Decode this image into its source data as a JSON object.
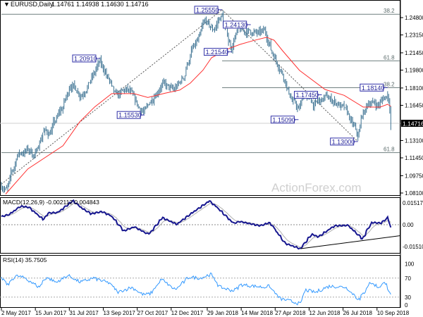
{
  "header": {
    "menu_glyph": "▼",
    "symbol": "EURUSD,Daily",
    "ohlc": "1.14761 1.14938 1.14630 1.14716"
  },
  "watermark": "ActionForex.com",
  "colors": {
    "bars": "#3e7393",
    "sma": "#ff3030",
    "macd": "#16168f",
    "macd_signal": "#b0b0b0",
    "rsi": "#3399ff",
    "label_border": "#3030a8",
    "label_text": "#25259a",
    "fib_line": "#6f7f7f",
    "price_tag_bg": "#000000"
  },
  "chart_data": [
    {
      "type": "candlestick-ohlc",
      "title": "EURUSD,Daily",
      "x_ticks": [
        "2 May 2017",
        "15 Jun 2017",
        "31 Jul 2017",
        "13 Sep 2017",
        "27 Oct 2017",
        "12 Dec 2017",
        "29 Jan 2018",
        "14 Mar 2018",
        "27 Apr 2018",
        "12 Jun 2018",
        "26 Jul 2018",
        "10 Sep 2018"
      ],
      "x_tick_dates": [
        "2017-05-02",
        "2017-06-15",
        "2017-07-31",
        "2017-09-13",
        "2017-10-27",
        "2017-12-12",
        "2018-01-29",
        "2018-03-14",
        "2018-04-27",
        "2018-06-12",
        "2018-07-26",
        "2018-09-10"
      ],
      "x_range": [
        "2017-05-02",
        "2018-09-27"
      ],
      "y_ticks": [
        "1.24800",
        "1.23150",
        "1.21450",
        "1.19800",
        "1.18100",
        "1.16450",
        "1.13100",
        "1.11450",
        "1.09750",
        "1.08100"
      ],
      "ylim": [
        1.081,
        1.248
      ],
      "current_price": "1.14716",
      "close_path": [
        [
          "2017-05-03",
          1.088
        ],
        [
          "2017-05-09",
          1.084
        ],
        [
          "2017-05-23",
          1.118
        ],
        [
          "2017-06-06",
          1.122
        ],
        [
          "2017-06-16",
          1.117
        ],
        [
          "2017-06-25",
          1.14
        ],
        [
          "2017-07-04",
          1.138
        ],
        [
          "2017-07-23",
          1.165
        ],
        [
          "2017-08-01",
          1.185
        ],
        [
          "2017-08-15",
          1.175
        ],
        [
          "2017-08-29",
          1.19
        ],
        [
          "2017-09-08",
          1.205
        ],
        [
          "2017-09-17",
          1.195
        ],
        [
          "2017-09-29",
          1.172
        ],
        [
          "2017-10-15",
          1.18
        ],
        [
          "2017-10-29",
          1.163
        ],
        [
          "2017-11-07",
          1.158
        ],
        [
          "2017-11-17",
          1.172
        ],
        [
          "2017-11-29",
          1.185
        ],
        [
          "2017-12-15",
          1.178
        ],
        [
          "2017-12-27",
          1.19
        ],
        [
          "2018-01-07",
          1.215
        ],
        [
          "2018-01-16",
          1.225
        ],
        [
          "2018-01-26",
          1.245
        ],
        [
          "2018-02-04",
          1.235
        ],
        [
          "2018-02-16",
          1.25
        ],
        [
          "2018-02-23",
          1.232
        ],
        [
          "2018-03-01",
          1.22
        ],
        [
          "2018-03-09",
          1.235
        ],
        [
          "2018-03-27",
          1.235
        ],
        [
          "2018-04-06",
          1.232
        ],
        [
          "2018-04-15",
          1.235
        ],
        [
          "2018-04-24",
          1.215
        ],
        [
          "2018-05-08",
          1.195
        ],
        [
          "2018-05-18",
          1.172
        ],
        [
          "2018-05-29",
          1.16
        ],
        [
          "2018-06-05",
          1.175
        ],
        [
          "2018-06-19",
          1.165
        ],
        [
          "2018-07-03",
          1.172
        ],
        [
          "2018-07-17",
          1.168
        ],
        [
          "2018-07-31",
          1.158
        ],
        [
          "2018-08-15",
          1.135
        ],
        [
          "2018-08-21",
          1.155
        ],
        [
          "2018-08-30",
          1.168
        ],
        [
          "2018-09-11",
          1.165
        ],
        [
          "2018-09-24",
          1.176
        ],
        [
          "2018-09-26",
          1.164
        ],
        [
          "2018-09-27",
          1.147
        ]
      ],
      "sma": [
        [
          "2017-05-08",
          1.08
        ],
        [
          "2017-06-06",
          1.104
        ],
        [
          "2017-07-23",
          1.126
        ],
        [
          "2017-08-14",
          1.149
        ],
        [
          "2017-09-01",
          1.163
        ],
        [
          "2017-09-25",
          1.1756
        ],
        [
          "2017-10-24",
          1.1756
        ],
        [
          "2017-11-12",
          1.172
        ],
        [
          "2017-12-04",
          1.176
        ],
        [
          "2017-12-22",
          1.179
        ],
        [
          "2018-01-07",
          1.1856
        ],
        [
          "2018-01-23",
          1.198
        ],
        [
          "2018-02-04",
          1.2098
        ],
        [
          "2018-02-23",
          1.218
        ],
        [
          "2018-03-13",
          1.2225
        ],
        [
          "2018-03-29",
          1.226
        ],
        [
          "2018-04-17",
          1.2293
        ],
        [
          "2018-04-26",
          1.2265
        ],
        [
          "2018-05-08",
          1.2165
        ],
        [
          "2018-05-30",
          1.1977
        ],
        [
          "2018-07-03",
          1.1796
        ],
        [
          "2018-07-28",
          1.174
        ],
        [
          "2018-08-22",
          1.1628
        ],
        [
          "2018-09-13",
          1.1628
        ],
        [
          "2018-09-24",
          1.1655
        ],
        [
          "2018-09-27",
          1.1635
        ]
      ],
      "pivot_labels": [
        {
          "text": "1.25550",
          "date": "2018-02-16",
          "price": 1.2555,
          "side": "left"
        },
        {
          "text": "1.24130",
          "date": "2018-03-27",
          "price": 1.2413,
          "side": "left"
        },
        {
          "text": "1.21540",
          "date": "2018-03-01",
          "price": 1.2154,
          "side": "left"
        },
        {
          "text": "1.20910",
          "date": "2017-09-08",
          "price": 1.2091,
          "side": "left"
        },
        {
          "text": "1.15530",
          "date": "2017-11-07",
          "price": 1.1553,
          "side": "left"
        },
        {
          "text": "1.15090",
          "date": "2018-05-29",
          "price": 1.1509,
          "side": "left"
        },
        {
          "text": "1.17450",
          "date": "2018-06-28",
          "price": 1.1745,
          "side": "left"
        },
        {
          "text": "1.18140",
          "date": "2018-09-24",
          "price": 1.1814,
          "side": "left"
        },
        {
          "text": "1.13000",
          "date": "2018-08-15",
          "price": 1.13,
          "side": "left"
        }
      ],
      "fib_levels": [
        {
          "label": "38.2",
          "price": 1.2512,
          "from": "2017-05-02"
        },
        {
          "label": "61.8",
          "price": 1.2068,
          "from": "2018-02-16"
        },
        {
          "label": "38.2",
          "price": 1.1813,
          "from": "2018-02-16"
        },
        {
          "label": "61.8",
          "price": 1.1195,
          "from": "2017-05-02"
        }
      ],
      "trend_lines": [
        {
          "style": "dashed",
          "from": [
            "2017-05-02",
            1.0895
          ],
          "to": [
            "2018-02-16",
            1.2555
          ]
        },
        {
          "style": "dashed",
          "from": [
            "2018-02-16",
            1.2555
          ],
          "to": [
            "2018-08-15",
            1.13
          ]
        }
      ]
    },
    {
      "type": "line",
      "title": "MACD(12,26,9) -0.002112 0.004843",
      "y_ticks": [
        "0.015176",
        "0.00",
        "-0.015109"
      ],
      "ylim": [
        -0.015109,
        0.015176
      ],
      "macd": [
        [
          "2017-05-02",
          0.0052
        ],
        [
          "2017-05-12",
          0.0065
        ],
        [
          "2017-05-27",
          0.0118
        ],
        [
          "2017-06-07",
          0.011
        ],
        [
          "2017-06-26",
          0.0032
        ],
        [
          "2017-07-02",
          0.0074
        ],
        [
          "2017-07-15",
          0.0077
        ],
        [
          "2017-08-04",
          0.0152
        ],
        [
          "2017-08-16",
          0.0104
        ],
        [
          "2017-08-28",
          0.0069
        ],
        [
          "2017-09-11",
          0.0083
        ],
        [
          "2017-09-24",
          0.0055
        ],
        [
          "2017-10-10",
          -0.0039
        ],
        [
          "2017-10-24",
          -0.0014
        ],
        [
          "2017-11-12",
          -0.0062
        ],
        [
          "2017-11-30",
          0.0044
        ],
        [
          "2017-12-19",
          0.0003
        ],
        [
          "2018-01-08",
          0.0074
        ],
        [
          "2018-01-31",
          0.015
        ],
        [
          "2018-02-10",
          0.0111
        ],
        [
          "2018-03-04",
          0.0007
        ],
        [
          "2018-03-11",
          0.0021
        ],
        [
          "2018-04-08",
          -0.0007
        ],
        [
          "2018-04-21",
          0.0014
        ],
        [
          "2018-05-11",
          -0.0118
        ],
        [
          "2018-05-31",
          -0.0152
        ],
        [
          "2018-06-16",
          -0.0056
        ],
        [
          "2018-06-23",
          -0.008
        ],
        [
          "2018-07-15",
          -0.0007
        ],
        [
          "2018-08-02",
          -0.0004
        ],
        [
          "2018-08-21",
          -0.009
        ],
        [
          "2018-09-02",
          0.0014
        ],
        [
          "2018-09-15",
          0.001
        ],
        [
          "2018-09-24",
          0.0049
        ],
        [
          "2018-09-27",
          -0.0021
        ]
      ],
      "trend_line": {
        "from": [
          "2018-05-31",
          -0.0152
        ],
        "to": [
          "2018-09-27",
          -0.0069
        ]
      }
    },
    {
      "type": "line",
      "title": "RSI(14) 35.7505",
      "y_ticks": [
        "100",
        "70",
        "30",
        "0"
      ],
      "ylim": [
        0,
        100
      ],
      "levels": [
        70,
        30
      ],
      "rsi": [
        [
          "2017-05-02",
          70
        ],
        [
          "2017-05-10",
          56
        ],
        [
          "2017-05-20",
          75
        ],
        [
          "2017-06-02",
          70
        ],
        [
          "2017-06-20",
          51
        ],
        [
          "2017-06-30",
          72
        ],
        [
          "2017-07-13",
          61
        ],
        [
          "2017-07-29",
          76
        ],
        [
          "2017-08-13",
          61
        ],
        [
          "2017-08-31",
          70
        ],
        [
          "2017-09-22",
          59
        ],
        [
          "2017-10-02",
          40
        ],
        [
          "2017-10-21",
          51
        ],
        [
          "2017-11-04",
          35
        ],
        [
          "2017-11-14",
          37
        ],
        [
          "2017-11-29",
          67
        ],
        [
          "2017-12-17",
          45
        ],
        [
          "2018-01-04",
          72
        ],
        [
          "2018-01-19",
          70
        ],
        [
          "2018-02-02",
          78
        ],
        [
          "2018-02-14",
          51
        ],
        [
          "2018-03-04",
          43
        ],
        [
          "2018-03-14",
          56
        ],
        [
          "2018-04-12",
          51
        ],
        [
          "2018-04-20",
          53
        ],
        [
          "2018-05-04",
          27
        ],
        [
          "2018-05-19",
          21
        ],
        [
          "2018-05-31",
          16
        ],
        [
          "2018-06-07",
          45
        ],
        [
          "2018-06-20",
          40
        ],
        [
          "2018-07-08",
          53
        ],
        [
          "2018-07-30",
          51
        ],
        [
          "2018-08-17",
          24
        ],
        [
          "2018-08-31",
          61
        ],
        [
          "2018-09-11",
          51
        ],
        [
          "2018-09-21",
          61
        ],
        [
          "2018-09-27",
          35.75
        ]
      ]
    }
  ]
}
